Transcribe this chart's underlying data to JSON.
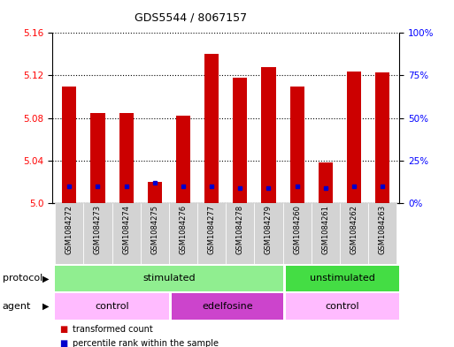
{
  "title": "GDS5544 / 8067157",
  "samples": [
    "GSM1084272",
    "GSM1084273",
    "GSM1084274",
    "GSM1084275",
    "GSM1084276",
    "GSM1084277",
    "GSM1084278",
    "GSM1084279",
    "GSM1084260",
    "GSM1084261",
    "GSM1084262",
    "GSM1084263"
  ],
  "transformed_counts": [
    5.11,
    5.085,
    5.085,
    5.02,
    5.082,
    5.14,
    5.118,
    5.128,
    5.11,
    5.038,
    5.124,
    5.123
  ],
  "percentile_ranks": [
    10,
    10,
    10,
    12,
    10,
    10,
    9,
    9,
    10,
    9,
    10,
    10
  ],
  "ylim_left": [
    5.0,
    5.16
  ],
  "ylim_right": [
    0,
    100
  ],
  "yticks_left": [
    5.0,
    5.04,
    5.08,
    5.12,
    5.16
  ],
  "yticks_right": [
    0,
    25,
    50,
    75,
    100
  ],
  "ytick_labels_right": [
    "0%",
    "25%",
    "50%",
    "75%",
    "100%"
  ],
  "bar_color": "#cc0000",
  "percentile_color": "#0000cc",
  "bar_width": 0.5,
  "background_color": "#ffffff",
  "plot_bg_color": "#ffffff",
  "legend_items": [
    {
      "label": "transformed count",
      "color": "#cc0000"
    },
    {
      "label": "percentile rank within the sample",
      "color": "#0000cc"
    }
  ],
  "protocol_label": "protocol",
  "agent_label": "agent",
  "stimulated_color": "#90ee90",
  "unstimulated_color": "#44dd44",
  "control_color": "#ffbbff",
  "edelfosine_color": "#cc44cc"
}
